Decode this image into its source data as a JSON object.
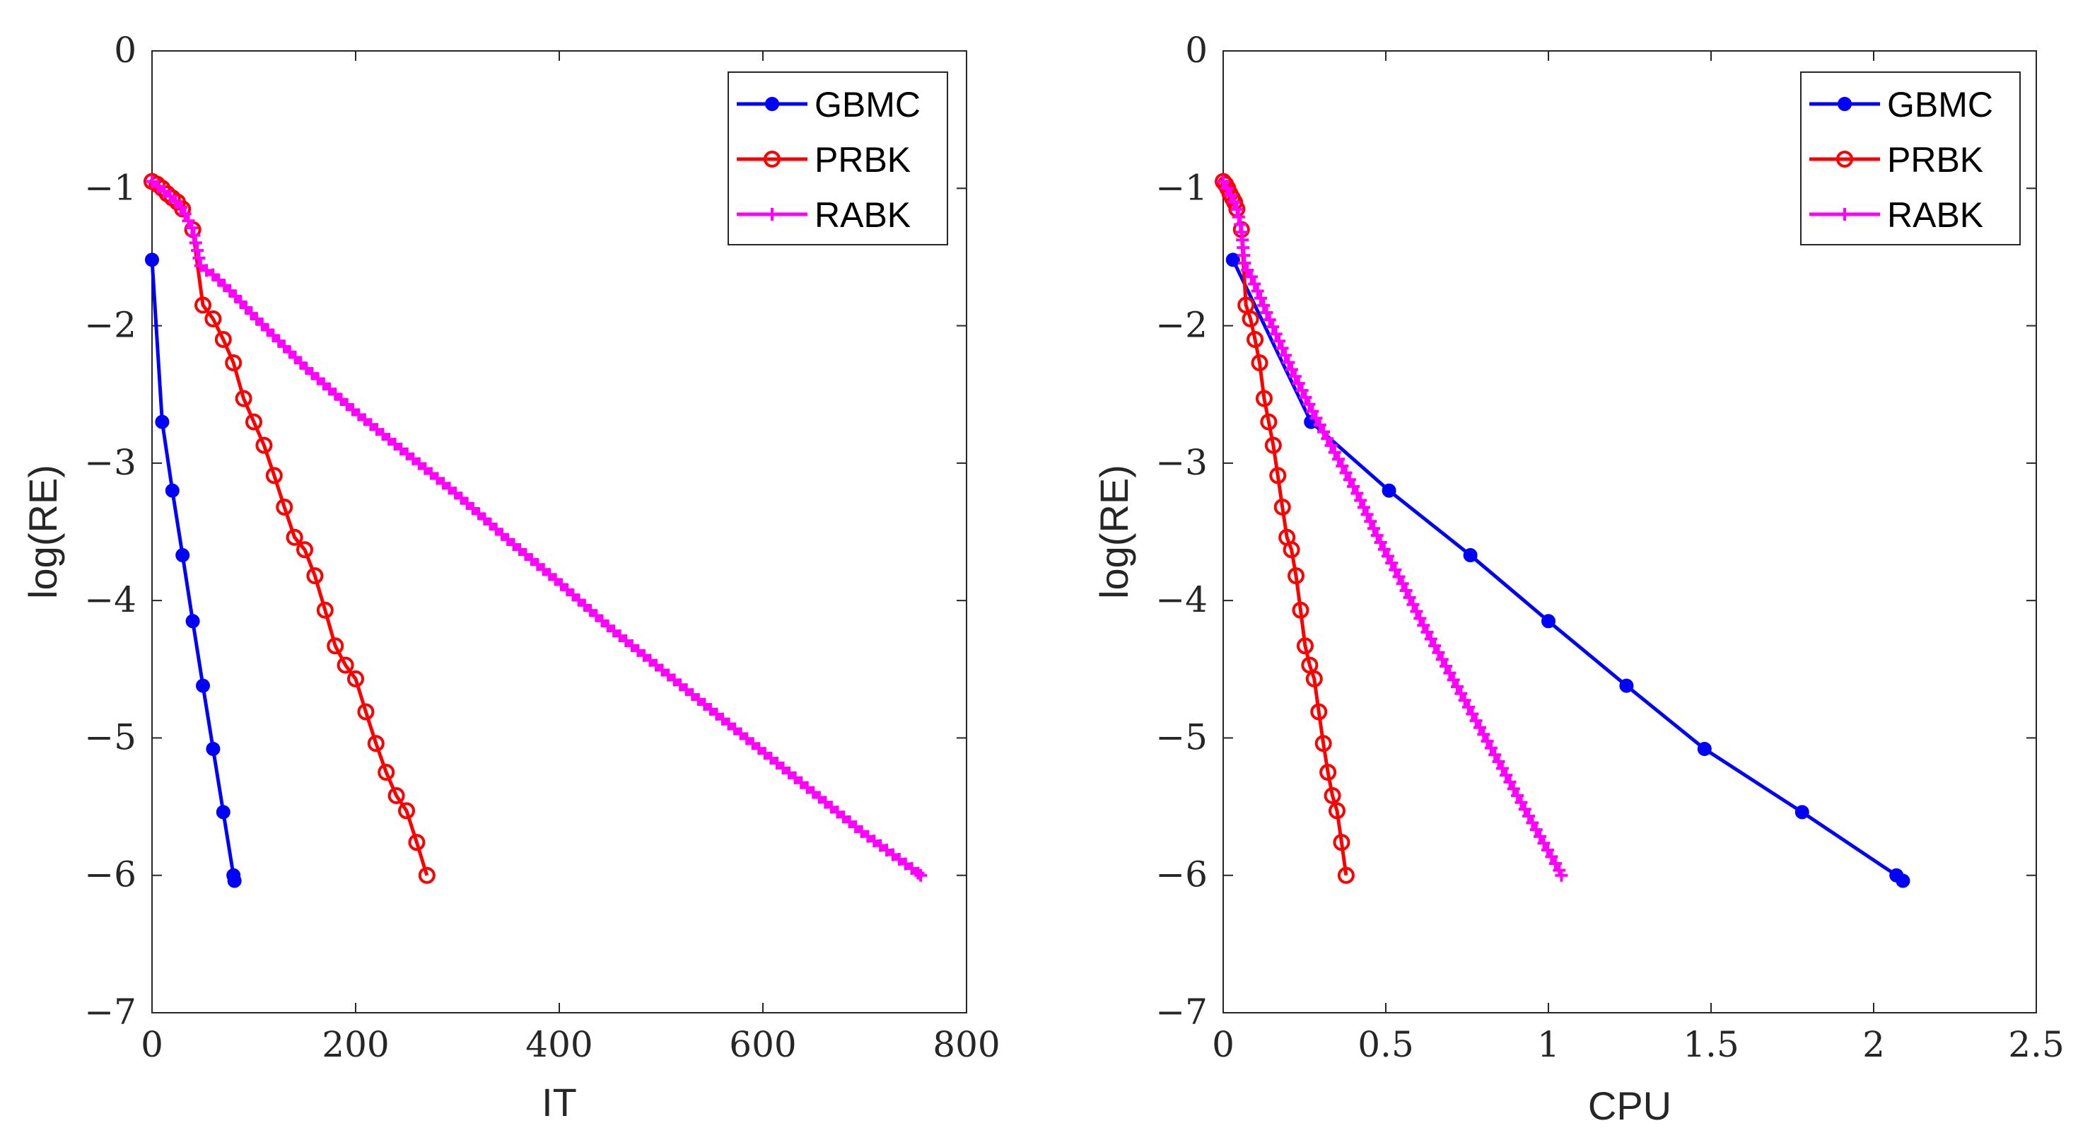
{
  "chart_data": [
    {
      "type": "line",
      "xlabel": "IT",
      "ylabel": "log(RE)",
      "xlim": [
        0,
        800
      ],
      "ylim": [
        -7,
        0
      ],
      "xticks": [
        0,
        200,
        400,
        600,
        800
      ],
      "yticks": [
        0,
        -1,
        -2,
        -3,
        -4,
        -5,
        -6,
        -7
      ],
      "xtick_labels": [
        "0",
        "200",
        "400",
        "600",
        "800"
      ],
      "ytick_labels": [
        "0",
        "−1",
        "−2",
        "−3",
        "−4",
        "−5",
        "−6",
        "−7"
      ],
      "legend": "top-right",
      "series": [
        {
          "name": "GBMC",
          "color": "#0000ff",
          "marker": "dot",
          "x": [
            0,
            10,
            20,
            30,
            40,
            50,
            60,
            70,
            80,
            81
          ],
          "y": [
            -1.52,
            -2.7,
            -3.2,
            -3.67,
            -4.15,
            -4.62,
            -5.08,
            -5.54,
            -6.0,
            -6.04
          ]
        },
        {
          "name": "PRBK",
          "color": "#ff0000",
          "marker": "circle",
          "x": [
            0,
            5,
            10,
            15,
            20,
            25,
            30,
            40,
            50,
            60,
            70,
            80,
            90,
            100,
            110,
            120,
            130,
            140,
            150,
            160,
            170,
            180,
            190,
            200,
            210,
            220,
            230,
            240,
            250,
            260,
            270
          ],
          "y": [
            -0.95,
            -0.97,
            -1.0,
            -1.04,
            -1.07,
            -1.1,
            -1.15,
            -1.3,
            -1.85,
            -1.95,
            -2.1,
            -2.27,
            -2.53,
            -2.7,
            -2.87,
            -3.09,
            -3.32,
            -3.54,
            -3.63,
            -3.82,
            -4.07,
            -4.33,
            -4.47,
            -4.57,
            -4.81,
            -5.04,
            -5.25,
            -5.42,
            -5.53,
            -5.76,
            -6.0
          ]
        },
        {
          "name": "RABK",
          "color": "#ff00ff",
          "marker": "plus",
          "x": [
            0,
            5,
            10,
            20,
            30,
            40,
            48,
            60,
            80,
            100,
            150,
            200,
            250,
            300,
            350,
            400,
            450,
            500,
            550,
            600,
            650,
            700,
            750,
            755
          ],
          "y": [
            -0.95,
            -0.98,
            -1.01,
            -1.07,
            -1.15,
            -1.3,
            -1.57,
            -1.63,
            -1.77,
            -1.93,
            -2.3,
            -2.63,
            -2.93,
            -3.23,
            -3.56,
            -3.87,
            -4.2,
            -4.5,
            -4.8,
            -5.1,
            -5.4,
            -5.7,
            -5.97,
            -6.0
          ]
        }
      ]
    },
    {
      "type": "line",
      "xlabel": "CPU",
      "ylabel": "log(RE)",
      "xlim": [
        0,
        2.5
      ],
      "ylim": [
        -7,
        0
      ],
      "xticks": [
        0,
        0.5,
        1,
        1.5,
        2,
        2.5
      ],
      "yticks": [
        0,
        -1,
        -2,
        -3,
        -4,
        -5,
        -6,
        -7
      ],
      "xtick_labels": [
        "0",
        "0.5",
        "1",
        "1.5",
        "2",
        "2.5"
      ],
      "ytick_labels": [
        "0",
        "−1",
        "−2",
        "−3",
        "−4",
        "−5",
        "−6",
        "−7"
      ],
      "legend": "top-right",
      "series": [
        {
          "name": "GBMC",
          "color": "#0000ff",
          "marker": "dot",
          "x": [
            0.03,
            0.27,
            0.51,
            0.76,
            1.0,
            1.24,
            1.48,
            1.78,
            2.07,
            2.09
          ],
          "y": [
            -1.52,
            -2.7,
            -3.2,
            -3.67,
            -4.15,
            -4.62,
            -5.08,
            -5.54,
            -6.0,
            -6.04
          ]
        },
        {
          "name": "PRBK",
          "color": "#ff0000",
          "marker": "circle",
          "x": [
            0.0,
            0.007,
            0.014,
            0.021,
            0.028,
            0.035,
            0.042,
            0.056,
            0.07,
            0.084,
            0.098,
            0.112,
            0.126,
            0.14,
            0.154,
            0.168,
            0.182,
            0.196,
            0.21,
            0.224,
            0.238,
            0.252,
            0.266,
            0.28,
            0.294,
            0.308,
            0.322,
            0.336,
            0.35,
            0.364,
            0.378
          ],
          "y": [
            -0.95,
            -0.97,
            -1.0,
            -1.04,
            -1.07,
            -1.1,
            -1.15,
            -1.3,
            -1.85,
            -1.95,
            -2.1,
            -2.27,
            -2.53,
            -2.7,
            -2.87,
            -3.09,
            -3.32,
            -3.54,
            -3.63,
            -3.82,
            -4.07,
            -4.33,
            -4.47,
            -4.57,
            -4.81,
            -5.04,
            -5.25,
            -5.42,
            -5.53,
            -5.76,
            -6.0
          ]
        },
        {
          "name": "RABK",
          "color": "#ff00ff",
          "marker": "plus",
          "x": [
            0.0,
            0.007,
            0.014,
            0.028,
            0.042,
            0.056,
            0.067,
            0.084,
            0.11,
            0.138,
            0.207,
            0.276,
            0.345,
            0.414,
            0.48,
            0.55,
            0.62,
            0.69,
            0.76,
            0.83,
            0.9,
            0.97,
            1.035,
            1.04
          ],
          "y": [
            -0.95,
            -0.98,
            -1.01,
            -1.07,
            -1.15,
            -1.3,
            -1.57,
            -1.63,
            -1.77,
            -1.93,
            -2.3,
            -2.63,
            -2.93,
            -3.23,
            -3.56,
            -3.87,
            -4.2,
            -4.5,
            -4.8,
            -5.1,
            -5.4,
            -5.7,
            -5.97,
            -6.0
          ]
        }
      ]
    }
  ]
}
